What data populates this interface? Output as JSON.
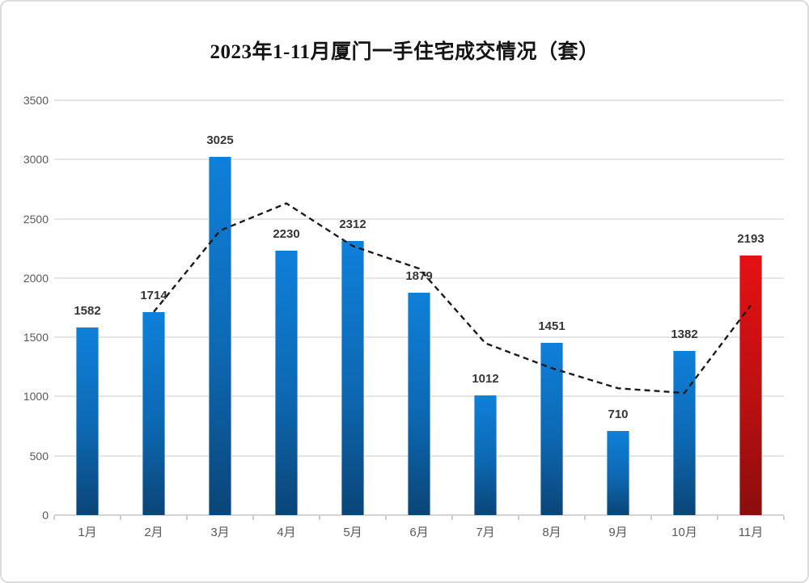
{
  "chart_data": {
    "type": "bar",
    "title": "2023年1-11月厦门一手住宅成交情况（套）",
    "categories": [
      "1月",
      "2月",
      "3月",
      "4月",
      "5月",
      "6月",
      "7月",
      "8月",
      "9月",
      "10月",
      "11月"
    ],
    "series": [
      {
        "name": "monthly-transactions-bars",
        "type": "bar",
        "values": [
          1582,
          1714,
          3025,
          2230,
          2312,
          1879,
          1012,
          1451,
          710,
          1382,
          2193
        ],
        "data_labels": [
          "1582",
          "1714",
          "3025",
          "2230",
          "2312",
          "1879",
          "1012",
          "1451",
          "710",
          "1382",
          "2193"
        ],
        "highlight_category": "11月"
      },
      {
        "name": "trend-dashed-line",
        "type": "line",
        "line_style": "dashed",
        "points": [
          {
            "category": "2月",
            "value": 1714
          },
          {
            "category": "3月",
            "value": 2400
          },
          {
            "category": "4月",
            "value": 2630
          },
          {
            "category": "5月",
            "value": 2270
          },
          {
            "category": "6月",
            "value": 2080
          },
          {
            "category": "7月",
            "value": 1450
          },
          {
            "category": "8月",
            "value": 1240
          },
          {
            "category": "9月",
            "value": 1070
          },
          {
            "category": "10月",
            "value": 1030
          },
          {
            "category": "11月",
            "value": 1770
          }
        ]
      }
    ],
    "xlabel": "",
    "ylabel": "",
    "ylim": [
      0,
      3500
    ],
    "ytick_step": 500,
    "ytick_labels": [
      "0",
      "500",
      "1000",
      "1500",
      "2000",
      "2500",
      "3000",
      "3500"
    ],
    "grid": true,
    "legend": "none",
    "colors": {
      "bar_blue_top": "#0f80da",
      "bar_blue_bottom": "#0a4577",
      "bar_red_top": "#e51114",
      "bar_red_bottom": "#8c0d0d",
      "trend_line": "#1b1b1b",
      "axis_text": "#595959",
      "data_label_text": "#363636",
      "gridline": "#e5e5e5",
      "frame_border": "#dcdcdc"
    }
  }
}
